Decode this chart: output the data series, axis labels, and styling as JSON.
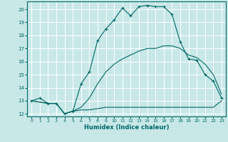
{
  "xlabel": "Humidex (Indice chaleur)",
  "background_color": "#c8e8e8",
  "grid_color": "#ffffff",
  "line_color": "#006666",
  "xlim": [
    -0.5,
    23.5
  ],
  "ylim": [
    11.8,
    20.6
  ],
  "yticks": [
    12,
    13,
    14,
    15,
    16,
    17,
    18,
    19,
    20
  ],
  "xticks": [
    0,
    1,
    2,
    3,
    4,
    5,
    6,
    7,
    8,
    9,
    10,
    11,
    12,
    13,
    14,
    15,
    16,
    17,
    18,
    19,
    20,
    21,
    22,
    23
  ],
  "series1_x": [
    0,
    1,
    2,
    3,
    4,
    5,
    6,
    7,
    8,
    9,
    10,
    11,
    12,
    13,
    14,
    15,
    16,
    17,
    18,
    19,
    20,
    21,
    22,
    23
  ],
  "series1_y": [
    13.0,
    13.2,
    12.8,
    12.8,
    12.0,
    12.2,
    14.3,
    15.2,
    17.6,
    18.5,
    19.2,
    20.1,
    19.5,
    20.2,
    20.3,
    20.2,
    20.2,
    19.6,
    17.5,
    16.2,
    16.1,
    15.0,
    14.5,
    13.2
  ],
  "series2_x": [
    0,
    2,
    3,
    4,
    5,
    6,
    7,
    8,
    9,
    10,
    11,
    12,
    13,
    14,
    15,
    16,
    17,
    18,
    19,
    20,
    21,
    22,
    23
  ],
  "series2_y": [
    13.0,
    12.8,
    12.8,
    12.0,
    12.2,
    12.3,
    12.3,
    12.4,
    12.5,
    12.5,
    12.5,
    12.5,
    12.5,
    12.5,
    12.5,
    12.5,
    12.5,
    12.5,
    12.5,
    12.5,
    12.5,
    12.5,
    13.0
  ],
  "series3_x": [
    0,
    2,
    3,
    4,
    5,
    6,
    7,
    8,
    9,
    10,
    11,
    12,
    13,
    14,
    15,
    16,
    17,
    18,
    19,
    20,
    21,
    22,
    23
  ],
  "series3_y": [
    13.0,
    12.8,
    12.8,
    12.0,
    12.2,
    12.5,
    13.2,
    14.3,
    15.2,
    15.8,
    16.2,
    16.5,
    16.8,
    17.0,
    17.0,
    17.2,
    17.2,
    17.0,
    16.5,
    16.3,
    15.8,
    15.0,
    13.5
  ]
}
